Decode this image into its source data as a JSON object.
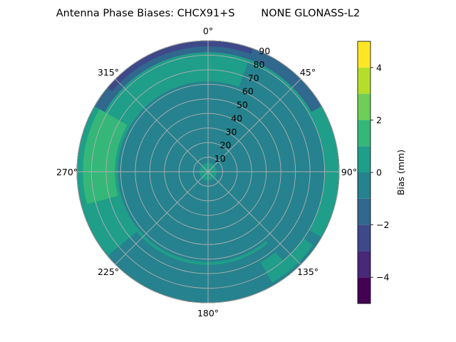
{
  "chart_data": {
    "type": "polar-contour",
    "title": "Antenna Phase Biases: CHCX91+S        NONE GLONASS-L2",
    "angular_ticks": [
      "0°",
      "45°",
      "90°",
      "135°",
      "180°",
      "225°",
      "270°",
      "315°"
    ],
    "radial_ticks": [
      "10",
      "20",
      "30",
      "40",
      "50",
      "60",
      "70",
      "80",
      "90"
    ],
    "radial_range": [
      0,
      90
    ],
    "grid": true,
    "colorbar": {
      "label": "Bias (mm)",
      "range": [
        -5,
        5
      ],
      "levels": [
        -5,
        -4,
        -3,
        -2,
        -1,
        0,
        1,
        2,
        3,
        4,
        5
      ],
      "ticks": [
        "−4",
        "−2",
        "0",
        "2",
        "4"
      ],
      "tick_values": [
        -4,
        -2,
        0,
        2,
        4
      ],
      "colors": [
        "#440154",
        "#482878",
        "#3e4989",
        "#31688e",
        "#26828e",
        "#1f9e89",
        "#35b779",
        "#6ece58",
        "#b5de2b",
        "#fde725"
      ]
    },
    "regions": [
      {
        "name": "outer-ring-background",
        "r": [
          0,
          90
        ],
        "az": [
          0,
          360
        ],
        "bias": 0.5
      },
      {
        "name": "inner-bowl",
        "r": [
          5,
          62
        ],
        "az": [
          0,
          360
        ],
        "bias": -0.5
      },
      {
        "name": "center",
        "r": [
          0,
          6
        ],
        "az": [
          0,
          360
        ],
        "bias": 0.5
      },
      {
        "name": "north-edge-ring",
        "r": [
          82,
          90
        ],
        "az": [
          300,
          60
        ],
        "bias": -1.5
      },
      {
        "name": "north-edge-low",
        "r": [
          86,
          90
        ],
        "az": [
          310,
          20
        ],
        "bias": -2.5
      },
      {
        "name": "west-patch",
        "r": [
          64,
          86
        ],
        "az": [
          255,
          300
        ],
        "bias": 1.5
      },
      {
        "name": "south-band",
        "r": [
          64,
          90
        ],
        "az": [
          120,
          230
        ],
        "bias": -0.5
      },
      {
        "name": "southeast-patch",
        "r": [
          72,
          88
        ],
        "az": [
          125,
          150
        ],
        "bias": 0.5
      },
      {
        "name": "east-band",
        "r": [
          62,
          80
        ],
        "az": [
          20,
          140
        ],
        "bias": -0.5
      }
    ]
  }
}
